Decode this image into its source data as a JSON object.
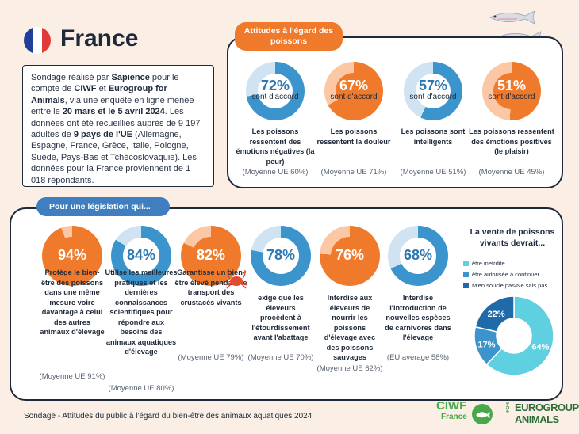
{
  "header": {
    "country": "France",
    "flag_colors": [
      "#1f3f9a",
      "#ffffff",
      "#e23a3a"
    ]
  },
  "survey": {
    "p1": "Sondage réalisé par ",
    "b1": "Sapience",
    "p2": " pour le compte de ",
    "b2": "CIWF",
    "p3": " et ",
    "b3": "Eurogroup for Animals",
    "p4": ", via une enquête en ligne menée entre le ",
    "b4": "20 mars et le 5 avril 2024",
    "p5": ". Les données ont été recueillies auprès de 9 197 adultes de ",
    "b5": "9 pays de l'UE",
    "p6": " (Allemagne, Espagne, France, Grèce, Italie, Pologne, Suède, Pays-Bas et Tchécoslovaquie). Les données pour la France proviennent de 1 018 répondants."
  },
  "attitudes": {
    "title": "Attitudes à l'égard des poissons",
    "items": [
      {
        "pct_label": "72%",
        "value": 72,
        "agree": "sont d'accord",
        "caption": "Les poissons ressentent des émotions négatives (la peur)",
        "avg": "(Moyenne UE 60%)",
        "color": "#3c94cc",
        "textcolor": "#2b78b2"
      },
      {
        "pct_label": "67%",
        "value": 67,
        "agree": "sont d'accord",
        "caption": "Les poissons ressentent la douleur",
        "avg": "(Moyenne UE 71%)",
        "color": "#f07a2b",
        "textcolor": "#ffffff"
      },
      {
        "pct_label": "57%",
        "value": 57,
        "agree": "sont d'accord",
        "caption": "Les poissons sont intelligents",
        "avg": "(Moyenne UE 51%)",
        "color": "#3c94cc",
        "textcolor": "#2b78b2"
      },
      {
        "pct_label": "51%",
        "value": 51,
        "agree": "sont d'accord",
        "caption": "Les poissons ressentent des émotions positives (le plaisir)",
        "avg": "(Moyenne UE 45%)",
        "color": "#f07a2b",
        "textcolor": "#ffffff"
      }
    ]
  },
  "legislation": {
    "title": "Pour une législation qui...",
    "items": [
      {
        "pct_label": "94%",
        "value": 94,
        "caption": "Protège le bien-être des poissons dans une même mesure voire davantage à celui des autres animaux d'élevage",
        "avg": "(Moyenne UE 91%)",
        "color": "#f07a2b",
        "textcolor": "#ffffff"
      },
      {
        "pct_label": "84%",
        "value": 84,
        "caption": "Utilise les meilleures pratiques et les dernières connaissances scientifiques pour répondre aux besoins des animaux aquatiques d'élevage",
        "avg": "(Moyenne UE 80%)",
        "color": "#3c94cc",
        "textcolor": "#2b78b2"
      },
      {
        "pct_label": "82%",
        "value": 82,
        "caption": "Garantisse un bien-être élevé pendant le transport des crustacés vivants",
        "avg": "(Moyenne UE 79%)",
        "color": "#f07a2b",
        "textcolor": "#ffffff"
      },
      {
        "pct_label": "78%",
        "value": 78,
        "caption": "exige que les éleveurs procèdent à l'étourdissement avant l'abattage",
        "avg": "(Moyenne UE 70%)",
        "color": "#3c94cc",
        "textcolor": "#2b78b2"
      },
      {
        "pct_label": "76%",
        "value": 76,
        "caption": "Interdise aux éleveurs de nourrir les poissons d'élevage avec des poissons sauvages",
        "avg": "(Moyenne UE 62%)",
        "color": "#f07a2b",
        "textcolor": "#ffffff"
      },
      {
        "pct_label": "68%",
        "value": 68,
        "caption": "Interdise l'introduction de nouvelles espèces de carnivores dans l'élevage",
        "avg": "(EU average 58%)",
        "color": "#3c94cc",
        "textcolor": "#2b78b2"
      }
    ]
  },
  "sale": {
    "title": "La vente de poissons vivants devrait...",
    "legend": [
      {
        "label": "être inetrdite",
        "color": "#5fd0e0"
      },
      {
        "label": "être autorisée à continuer",
        "color": "#3c94cc"
      },
      {
        "label": "M'en soucie pas/Ne sais pas",
        "color": "#1f6aa8"
      }
    ]
  },
  "chart_data": {
    "type": "pie",
    "title": "La vente de poissons vivants devrait...",
    "categories": [
      "être inetrdite",
      "être autorisée à continuer",
      "M'en soucie pas/Ne sais pas"
    ],
    "values": [
      64,
      17,
      22
    ],
    "labels": [
      "64%",
      "17%",
      "22%"
    ],
    "colors": [
      "#5fd0e0",
      "#3c94cc",
      "#1f6aa8"
    ],
    "donut": true,
    "legend": "top-left"
  },
  "footer": {
    "text": "Sondage - Attitudes du public à l'égard du bien-être des animaux aquatiques 2024"
  },
  "logos": {
    "ciwf_main": "CIWF",
    "ciwf_sub": "France",
    "euro_for": "FOR",
    "euro_1": "EUROGROUP",
    "euro_2": "ANIMALS"
  }
}
